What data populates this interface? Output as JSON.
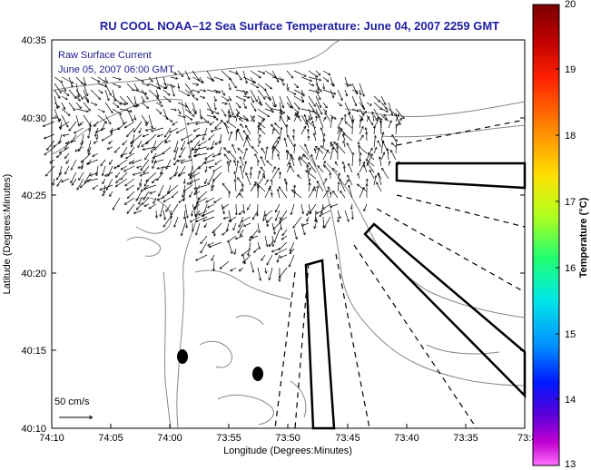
{
  "title": "RU COOL   NOAA–12  Sea Surface Temperature:  June 04, 2007 2259 GMT",
  "overlay": {
    "line1": "Raw Surface Current",
    "line2": "June 05, 2007 06:00 GMT"
  },
  "scale": {
    "label": "50 cm/s"
  },
  "axes": {
    "xlabel": "Longitude (Degrees:Minutes)",
    "ylabel": "Latitude (Degrees:Minutes)",
    "xticks": [
      "74:10",
      "74:05",
      "74:00",
      "73:55",
      "73:50",
      "73:45",
      "73:40",
      "73:35",
      "73:3"
    ],
    "yticks": [
      "40:35",
      "40:30",
      "40:25",
      "40:20",
      "40:15",
      "40:10"
    ]
  },
  "colorbar": {
    "label": "Temperature (°C)",
    "ticks": [
      "20",
      "19",
      "18",
      "17",
      "16",
      "15",
      "14",
      "13"
    ],
    "colors": [
      "#8b0000",
      "#d40000",
      "#ff3300",
      "#ff8800",
      "#ffdd00",
      "#a0ff30",
      "#00ee80",
      "#00e0ff",
      "#0080ff",
      "#0010ff",
      "#4a00d0",
      "#b000c0",
      "#ff66ff"
    ]
  },
  "map_features": {
    "coastline_color": "#777777",
    "current_vectors_color": "#000000",
    "buoys": 2,
    "shipping_lanes": "solid and dashed black polygons"
  }
}
